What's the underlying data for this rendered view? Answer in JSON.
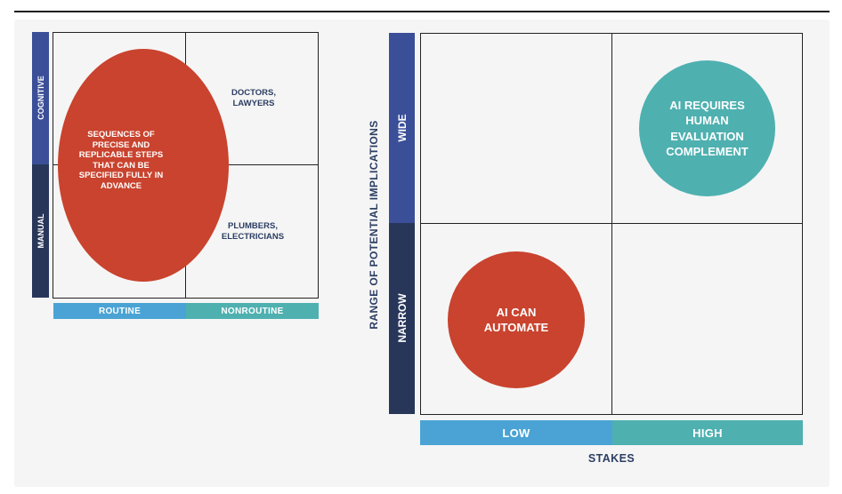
{
  "left_matrix": {
    "y_segments": [
      "COGNITIVE",
      "MANUAL"
    ],
    "x_segments": [
      "ROUTINE",
      "NONROUTINE"
    ],
    "oval_text": "SEQUENCES OF PRECISE AND REPLICABLE STEPS THAT CAN BE SPECIFIED FULLY IN ADVANCE",
    "top_right_text": "DOCTORS, LAWYERS",
    "bottom_right_text": "PLUMBERS, ELECTRICIANS"
  },
  "right_matrix": {
    "y_axis_title": "RANGE OF POTENTIAL IMPLICATIONS",
    "y_segments": [
      "WIDE",
      "NARROW"
    ],
    "x_segments": [
      "LOW",
      "HIGH"
    ],
    "x_axis_title": "STAKES",
    "teal_circle_text": "AI REQUIRES HUMAN EVALUATION COMPLEMENT",
    "red_circle_text": "AI CAN AUTOMATE"
  },
  "colors": {
    "dark_navy": "#283659",
    "mid_blue": "#3b4f98",
    "light_blue": "#4aa3d4",
    "teal": "#4fb0b0",
    "red": "#c9432e",
    "ink": "#2c3e63"
  }
}
